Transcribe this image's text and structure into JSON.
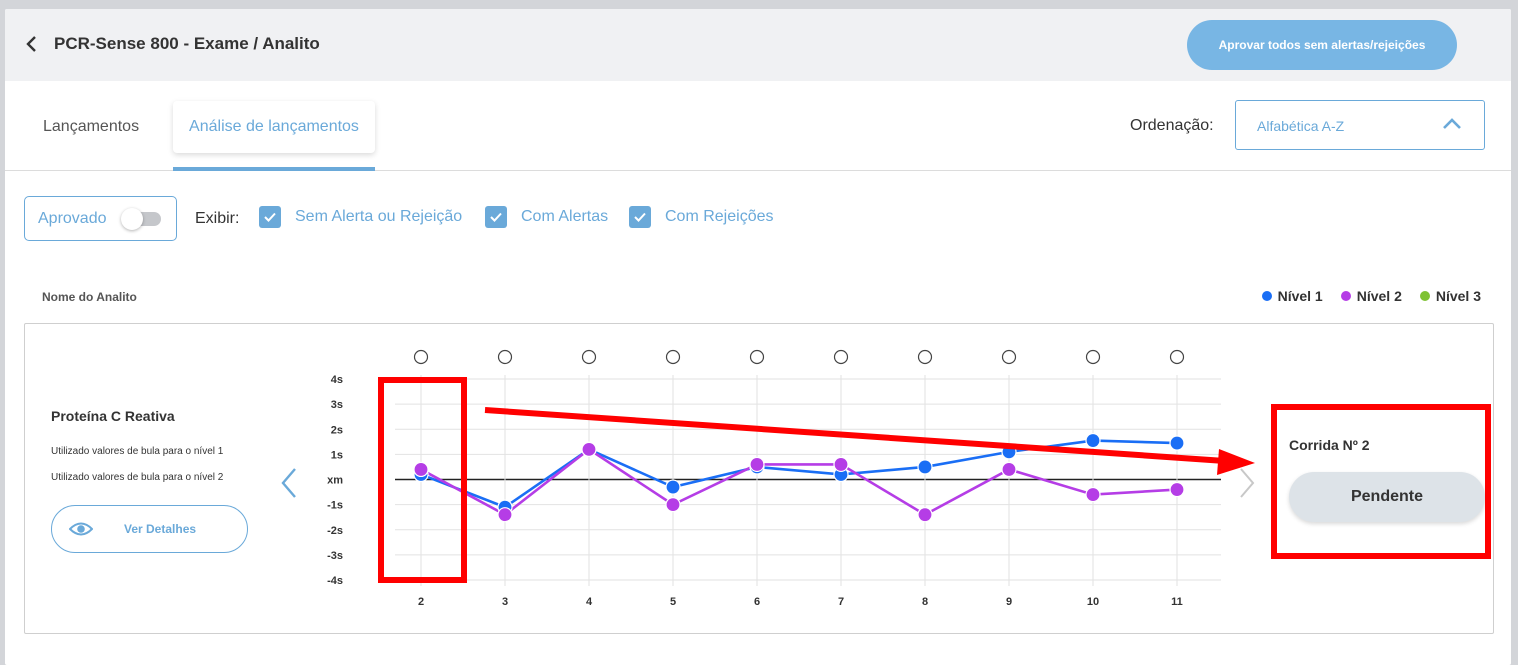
{
  "header": {
    "title": "PCR-Sense 800 - Exame / Analito",
    "approve_all_label": "Aprovar todos sem alertas/rejeições"
  },
  "tabs": [
    {
      "label": "Lançamentos",
      "active": false
    },
    {
      "label": "Análise de lançamentos",
      "active": true
    }
  ],
  "ordering": {
    "label": "Ordenação:",
    "value": "Alfabética A-Z"
  },
  "filters": {
    "approved_label": "Aprovado",
    "approved_on": false,
    "show_label": "Exibir:",
    "options": [
      {
        "label": "Sem Alerta ou Rejeição",
        "checked": true
      },
      {
        "label": "Com Alertas",
        "checked": true
      },
      {
        "label": "Com Rejeições",
        "checked": true
      }
    ]
  },
  "table": {
    "column_header": "Nome do Analito"
  },
  "legend": [
    {
      "label": "Nível 1",
      "color": "#1a6ef5"
    },
    {
      "label": "Nível 2",
      "color": "#b53de6"
    },
    {
      "label": "Nível 3",
      "color": "#7ec234"
    }
  ],
  "analyte": {
    "name": "Proteína C Reativa",
    "notes": [
      "Utilizado valores de bula para o nível 1",
      "Utilizado valores de bula para o nível 2"
    ],
    "details_label": "Ver Detalhes"
  },
  "chart_data": {
    "type": "line",
    "x": [
      2,
      3,
      4,
      5,
      6,
      7,
      8,
      9,
      10,
      11
    ],
    "y_ticks": [
      "4s",
      "3s",
      "2s",
      "1s",
      "xm",
      "-1s",
      "-2s",
      "-3s",
      "-4s"
    ],
    "ylim": [
      -4,
      4
    ],
    "series": [
      {
        "name": "Nível 1",
        "color": "#1a6ef5",
        "values": [
          0.2,
          -1.1,
          1.2,
          -0.3,
          0.5,
          0.2,
          0.5,
          1.1,
          1.55,
          1.45
        ]
      },
      {
        "name": "Nível 2",
        "color": "#b53de6",
        "values": [
          0.4,
          -1.4,
          1.2,
          -1.0,
          0.6,
          0.6,
          -1.4,
          0.4,
          -0.6,
          -0.4
        ]
      }
    ],
    "grid": true
  },
  "run": {
    "label": "Corrida Nº 2",
    "status": "Pendente"
  }
}
